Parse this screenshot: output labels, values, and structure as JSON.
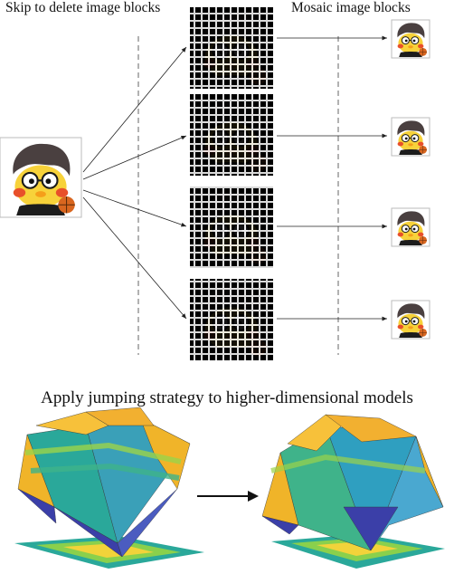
{
  "labels": {
    "left": "Skip to delete image blocks",
    "right": "Mosaic image blocks",
    "bottom": "Apply jumping strategy to higher-dimensional models"
  },
  "icons": {
    "source": "duck-avatar-icon",
    "blocked": "grid-masked-avatar-icon",
    "mosaic": "mosaic-avatar-icon",
    "left_surface": "3d-surface-plot-icon",
    "right_surface": "3d-surface-plot-icon",
    "arrow": "right-arrow-icon"
  },
  "colors": {
    "hair": "#4a4040",
    "face": "#f7d23a",
    "cheek": "#e8502a",
    "ball": "#d9661f",
    "surface_top": "#f0b429",
    "surface_mid": "#2aa89a",
    "surface_low": "#3b3fa8"
  }
}
